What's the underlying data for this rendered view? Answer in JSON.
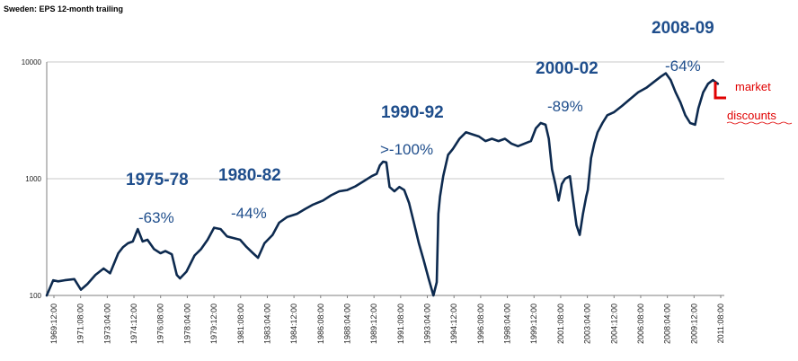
{
  "chart_data": {
    "type": "line",
    "title": "Sweden: EPS 12-month trailing",
    "xlabel": "",
    "ylabel": "",
    "yscale": "log",
    "ylim": [
      100,
      10000
    ],
    "yticks": [
      100,
      1000,
      10000
    ],
    "grid": "horizontal",
    "xticks": [
      "1969:12:00",
      "1971:08:00",
      "1973:04:00",
      "1974:12:00",
      "1976:08:00",
      "1978:04:00",
      "1979:12:00",
      "1981:08:00",
      "1983:04:00",
      "1984:12:00",
      "1986:08:00",
      "1988:04:00",
      "1989:12:00",
      "1991:08:00",
      "1993:04:00",
      "1994:12:00",
      "1996:08:00",
      "1998:04:00",
      "1999:12:00",
      "2001:08:00",
      "2003:04:00",
      "2004:12:00",
      "2006:08:00",
      "2008:04:00",
      "2009:12:00",
      "2011:08:00"
    ],
    "series": [
      {
        "color": "#0d2a4f",
        "x": [
          1969.9,
          1970.3,
          1970.6,
          1971.0,
          1971.6,
          1972.0,
          1972.4,
          1972.9,
          1973.4,
          1973.8,
          1974.3,
          1974.6,
          1974.9,
          1975.2,
          1975.5,
          1975.8,
          1976.1,
          1976.5,
          1976.9,
          1977.2,
          1977.6,
          1977.9,
          1978.1,
          1978.5,
          1979.0,
          1979.4,
          1979.8,
          1980.2,
          1980.6,
          1981.0,
          1981.4,
          1981.8,
          1982.2,
          1982.6,
          1982.9,
          1983.3,
          1983.8,
          1984.2,
          1984.7,
          1985.3,
          1985.8,
          1986.3,
          1986.9,
          1987.4,
          1987.9,
          1988.4,
          1988.9,
          1989.4,
          1989.9,
          1990.2,
          1990.4,
          1990.6,
          1990.8,
          1991.0,
          1991.3,
          1991.6,
          1991.9,
          1992.2,
          1992.5,
          1992.8,
          1993.1,
          1993.4,
          1993.7,
          1993.9,
          1994.0,
          1994.1,
          1994.3,
          1994.6,
          1994.9,
          1995.3,
          1995.7,
          1996.1,
          1996.5,
          1996.9,
          1997.3,
          1997.7,
          1998.1,
          1998.5,
          1998.9,
          1999.3,
          1999.7,
          2000.0,
          2000.3,
          2000.6,
          2000.8,
          2001.0,
          2001.2,
          2001.4,
          2001.6,
          2001.8,
          2002.1,
          2002.3,
          2002.5,
          2002.7,
          2002.9,
          2003.1,
          2003.2,
          2003.4,
          2003.6,
          2003.8,
          2004.1,
          2004.4,
          2004.8,
          2005.3,
          2005.8,
          2006.3,
          2006.8,
          2007.3,
          2007.7,
          2008.0,
          2008.3,
          2008.6,
          2008.9,
          2009.2,
          2009.5,
          2009.8,
          2010.0,
          2010.3,
          2010.6,
          2010.9,
          2011.2
        ],
        "y": [
          100,
          135,
          132,
          135,
          138,
          112,
          125,
          150,
          170,
          155,
          230,
          260,
          280,
          290,
          370,
          290,
          300,
          250,
          230,
          240,
          225,
          150,
          140,
          160,
          220,
          250,
          300,
          380,
          370,
          320,
          310,
          300,
          260,
          230,
          210,
          280,
          330,
          420,
          470,
          500,
          550,
          600,
          650,
          720,
          780,
          800,
          860,
          950,
          1050,
          1100,
          1300,
          1400,
          1380,
          850,
          780,
          850,
          800,
          620,
          420,
          280,
          200,
          140,
          100,
          130,
          500,
          700,
          1050,
          1600,
          1800,
          2200,
          2500,
          2400,
          2300,
          2100,
          2200,
          2100,
          2200,
          2000,
          1900,
          2000,
          2100,
          2700,
          3000,
          2900,
          2200,
          1200,
          900,
          650,
          900,
          1000,
          1050,
          650,
          400,
          330,
          500,
          700,
          800,
          1500,
          2000,
          2500,
          3000,
          3500,
          3700,
          4200,
          4800,
          5500,
          6000,
          6800,
          7500,
          8000,
          7000,
          5500,
          4500,
          3500,
          3000,
          2900,
          4000,
          5500,
          6500,
          7000,
          6500
        ]
      }
    ],
    "periods": [
      {
        "label": "1975-78",
        "drop": "-63%"
      },
      {
        "label": "1980-82",
        "drop": "-44%"
      },
      {
        "label": "1990-92",
        "drop": ">-100%"
      },
      {
        "label": "2000-02",
        "drop": "-89%"
      },
      {
        "label": "2008-09",
        "drop": "-64%"
      }
    ],
    "annotation": {
      "line1": "market",
      "line2": "discounts",
      "color": "#e00000"
    }
  }
}
